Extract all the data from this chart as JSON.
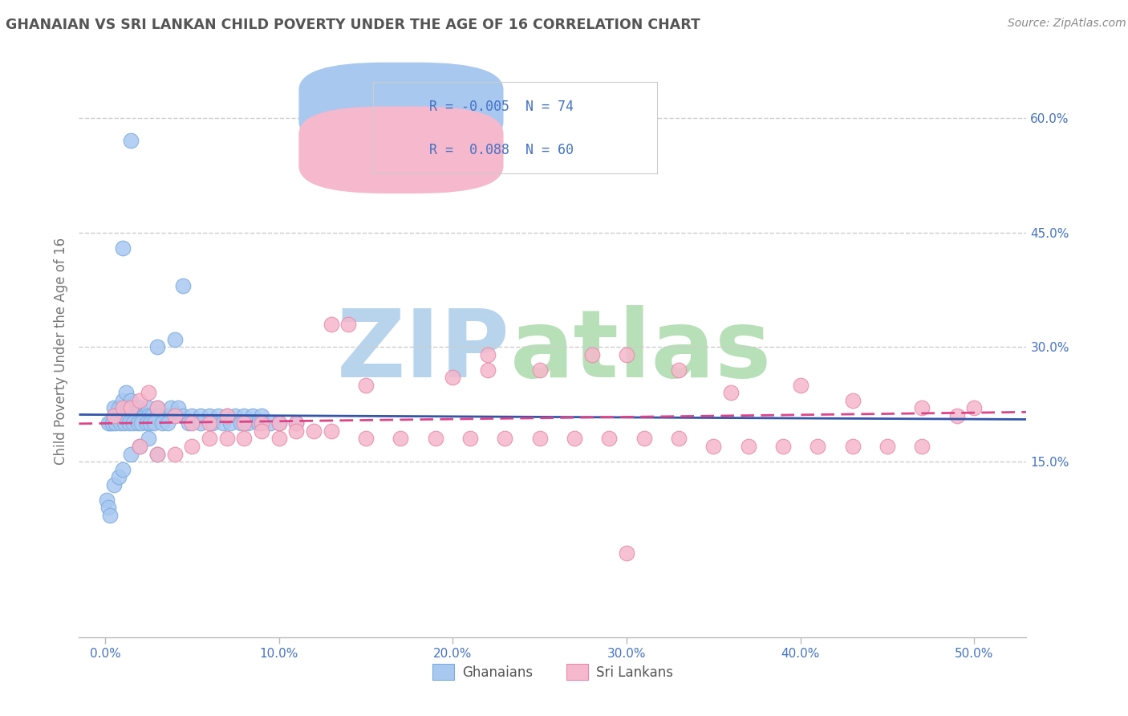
{
  "title": "GHANAIAN VS SRI LANKAN CHILD POVERTY UNDER THE AGE OF 16 CORRELATION CHART",
  "source": "Source: ZipAtlas.com",
  "ylabel": "Child Poverty Under the Age of 16",
  "x_tick_labels": [
    "0.0%",
    "10.0%",
    "20.0%",
    "30.0%",
    "40.0%",
    "50.0%"
  ],
  "x_tick_values": [
    0,
    10,
    20,
    30,
    40,
    50
  ],
  "y_tick_labels": [
    "15.0%",
    "30.0%",
    "45.0%",
    "60.0%"
  ],
  "y_tick_values": [
    15,
    30,
    45,
    60
  ],
  "xlim": [
    -1.5,
    53
  ],
  "ylim": [
    -8,
    67
  ],
  "ghanaian_color": "#a8c8f0",
  "ghanaian_edge": "#7aabde",
  "srilanka_color": "#f5b8cc",
  "srilanka_edge": "#e888a8",
  "trend1_color": "#3355aa",
  "trend2_color": "#dd4488",
  "legend_text_color": "#4472c4",
  "title_color": "#555555",
  "watermark_zip_color": "#b8d4ec",
  "watermark_atlas_color": "#b8e0b8",
  "axis_color": "#4472c4",
  "grid_color": "#cccccc",
  "source_color": "#888888",
  "ylabel_color": "#777777",
  "bottom_legend_color": "#555555",
  "legend_box_edge": "#cccccc",
  "gh_x": [
    1.5,
    1.0,
    4.5,
    0.3,
    0.5,
    0.7,
    0.8,
    1.0,
    1.2,
    1.3,
    1.5,
    1.7,
    1.8,
    2.0,
    2.0,
    2.2,
    2.3,
    2.5,
    2.5,
    2.7,
    3.0,
    3.0,
    3.2,
    3.5,
    3.8,
    4.0,
    4.2,
    4.5,
    5.0,
    5.5,
    6.0,
    6.5,
    7.0,
    7.5,
    8.0,
    8.5,
    9.0,
    0.2,
    0.4,
    0.6,
    0.9,
    1.1,
    1.4,
    1.6,
    1.9,
    2.1,
    2.4,
    2.6,
    2.8,
    3.3,
    3.6,
    4.8,
    5.5,
    6.2,
    6.8,
    7.2,
    7.8,
    8.2,
    8.8,
    9.5,
    10.0,
    11.0,
    3.0,
    4.0,
    0.1,
    0.2,
    0.3,
    0.5,
    0.8,
    1.0,
    1.5,
    2.0,
    2.5,
    3.0
  ],
  "gh_y": [
    57,
    43,
    38,
    20,
    22,
    21,
    22,
    23,
    24,
    22,
    23,
    22,
    21,
    21,
    22,
    21,
    21,
    22,
    21,
    21,
    22,
    21,
    21,
    21,
    22,
    21,
    22,
    21,
    21,
    21,
    21,
    21,
    21,
    21,
    21,
    21,
    21,
    20,
    20,
    20,
    20,
    20,
    20,
    20,
    20,
    20,
    20,
    20,
    20,
    20,
    20,
    20,
    20,
    20,
    20,
    20,
    20,
    20,
    20,
    20,
    20,
    20,
    30,
    31,
    10,
    9,
    8,
    12,
    13,
    14,
    16,
    17,
    18,
    16
  ],
  "sl_x": [
    13.0,
    14.0,
    0.5,
    1.0,
    1.5,
    2.0,
    2.5,
    3.0,
    4.0,
    5.0,
    6.0,
    7.0,
    8.0,
    9.0,
    10.0,
    11.0,
    15.0,
    20.0,
    22.0,
    25.0,
    28.0,
    30.0,
    33.0,
    36.0,
    40.0,
    43.0,
    47.0,
    50.0,
    5.0,
    7.0,
    9.0,
    11.0,
    13.0,
    15.0,
    17.0,
    19.0,
    21.0,
    23.0,
    25.0,
    27.0,
    29.0,
    31.0,
    33.0,
    35.0,
    37.0,
    39.0,
    41.0,
    43.0,
    45.0,
    47.0,
    49.0,
    2.0,
    3.0,
    4.0,
    6.0,
    8.0,
    10.0,
    12.0,
    22.0,
    30.0
  ],
  "sl_y": [
    33,
    33,
    21,
    22,
    22,
    23,
    24,
    22,
    21,
    20,
    20,
    21,
    20,
    20,
    20,
    20,
    25,
    26,
    27,
    27,
    29,
    29,
    27,
    24,
    25,
    23,
    22,
    22,
    17,
    18,
    19,
    19,
    19,
    18,
    18,
    18,
    18,
    18,
    18,
    18,
    18,
    18,
    18,
    17,
    17,
    17,
    17,
    17,
    17,
    17,
    21,
    17,
    16,
    16,
    18,
    18,
    18,
    19,
    29,
    3
  ]
}
